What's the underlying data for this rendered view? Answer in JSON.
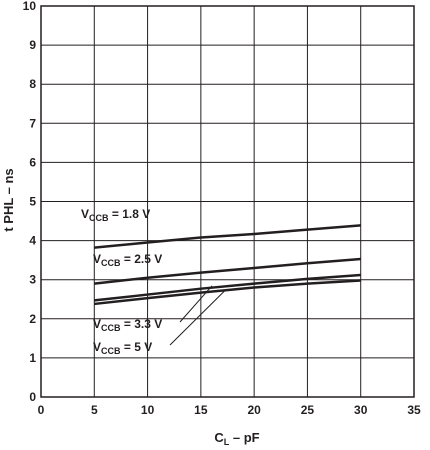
{
  "chart_data": {
    "type": "line",
    "xlabel": {
      "main": "C",
      "sub": "L",
      "rest": " – pF"
    },
    "ylabel": "t PHL – ns",
    "xlim": [
      0,
      35
    ],
    "ylim": [
      0,
      10
    ],
    "x_ticks": [
      0,
      5,
      10,
      15,
      20,
      25,
      30,
      35
    ],
    "y_ticks": [
      0,
      1,
      2,
      3,
      4,
      5,
      6,
      7,
      8,
      9,
      10
    ],
    "grid": true,
    "series": [
      {
        "name": "V CCB = 1.8 V",
        "label_main": "V",
        "label_sub": "CCB",
        "label_rest": " = 1.8 V",
        "x": [
          5,
          10,
          15,
          20,
          25,
          30
        ],
        "y": [
          3.82,
          3.95,
          4.08,
          4.17,
          4.28,
          4.39
        ]
      },
      {
        "name": "V CCB = 2.5 V",
        "label_main": "V",
        "label_sub": "CCB",
        "label_rest": " = 2.5 V",
        "x": [
          5,
          10,
          15,
          20,
          25,
          30
        ],
        "y": [
          2.9,
          3.05,
          3.18,
          3.3,
          3.42,
          3.53
        ]
      },
      {
        "name": "V CCB = 3.3 V",
        "label_main": "V",
        "label_sub": "CCB",
        "label_rest": " = 3.3 V",
        "x": [
          5,
          10,
          15,
          20,
          25,
          30
        ],
        "y": [
          2.47,
          2.62,
          2.77,
          2.9,
          3.02,
          3.12
        ]
      },
      {
        "name": "V CCB = 5 V",
        "label_main": "V",
        "label_sub": "CCB",
        "label_rest": " = 5 V",
        "x": [
          5,
          10,
          15,
          20,
          25,
          30
        ],
        "y": [
          2.38,
          2.53,
          2.67,
          2.8,
          2.9,
          2.98
        ]
      }
    ],
    "line_color": "#231f20",
    "grid_color": "#231f20"
  }
}
